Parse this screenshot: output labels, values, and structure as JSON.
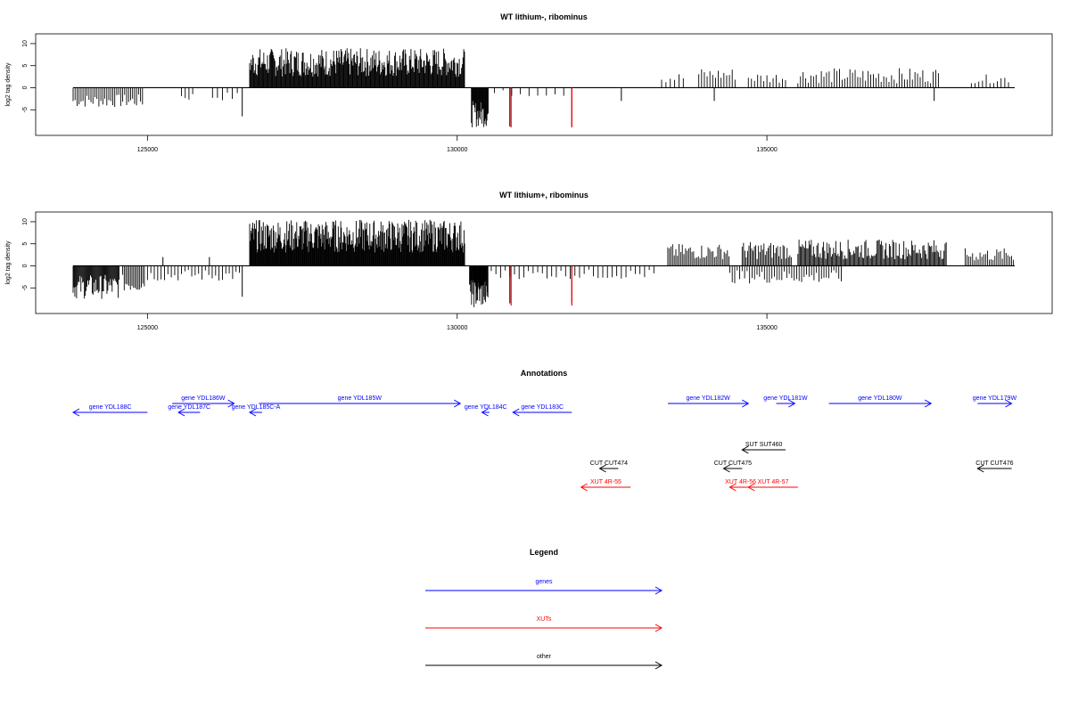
{
  "colors": {
    "gene": "#0000ff",
    "xut": "#ff0000",
    "other": "#000000",
    "trace": "#000000",
    "highlight": "#ff0000"
  },
  "chart_data": [
    {
      "type": "bar",
      "title": "WT lithium-, ribominus",
      "ylabel": "log2 tag density",
      "xlim": [
        123400,
        139000
      ],
      "ylim": [
        -10,
        11
      ],
      "xticks": [
        125000,
        130000,
        135000
      ],
      "xtick_labels": [
        "125000",
        "130000",
        "135000"
      ],
      "yticks": [
        10,
        5,
        0,
        -5
      ],
      "ytick_labels": [
        "10",
        "5",
        "0",
        "-5"
      ],
      "grid": false,
      "segments": [
        {
          "x0": 123800,
          "x1": 124950,
          "ymin": -4.5,
          "ymax": -1.5,
          "sign": -1,
          "step": 32
        },
        {
          "x0": 125550,
          "x1": 125750,
          "ymin": -3,
          "ymax": -1,
          "sign": -1,
          "step": 60
        },
        {
          "x0": 126050,
          "x1": 126500,
          "ymin": -3,
          "ymax": -1,
          "sign": -1,
          "step": 80
        },
        {
          "x0": 126650,
          "x1": 130120,
          "ymin": 2.5,
          "ymax": 9,
          "sign": 1,
          "step": 12
        },
        {
          "x0": 130230,
          "x1": 130500,
          "ymin": -9,
          "ymax": -3,
          "sign": -1,
          "step": 10
        },
        {
          "x0": 130600,
          "x1": 131800,
          "ymin": -2,
          "ymax": -0.5,
          "sign": -1,
          "step": 140
        },
        {
          "x0": 133300,
          "x1": 133700,
          "ymin": 1,
          "ymax": 3.5,
          "sign": 1,
          "step": 70
        },
        {
          "x0": 133900,
          "x1": 134500,
          "ymin": 1.5,
          "ymax": 4.5,
          "sign": 1,
          "step": 45
        },
        {
          "x0": 134700,
          "x1": 135300,
          "ymin": 1,
          "ymax": 3.5,
          "sign": 1,
          "step": 50
        },
        {
          "x0": 135500,
          "x1": 137800,
          "ymin": 1,
          "ymax": 4.5,
          "sign": 1,
          "step": 42
        },
        {
          "x0": 138300,
          "x1": 138950,
          "ymin": 1,
          "ymax": 3,
          "sign": 1,
          "step": 60
        }
      ],
      "spikes": [
        {
          "x": 126530,
          "y": -6.5
        },
        {
          "x": 130850,
          "y": -8.8
        },
        {
          "x": 131850,
          "y": -8.8
        },
        {
          "x": 132650,
          "y": -3
        },
        {
          "x": 134150,
          "y": -3
        },
        {
          "x": 137700,
          "y": -3
        }
      ],
      "red_spikes": [
        {
          "x": 130870,
          "y": -9
        },
        {
          "x": 131850,
          "y": -9
        }
      ]
    },
    {
      "type": "bar",
      "title": "WT lithium+, ribominus",
      "ylabel": "log2 tag density",
      "xlim": [
        123400,
        139000
      ],
      "ylim": [
        -10,
        11
      ],
      "xticks": [
        125000,
        130000,
        135000
      ],
      "xtick_labels": [
        "125000",
        "130000",
        "135000"
      ],
      "yticks": [
        10,
        5,
        0,
        -5
      ],
      "ytick_labels": [
        "10",
        "5",
        "0",
        "-5"
      ],
      "grid": false,
      "segments": [
        {
          "x0": 123800,
          "x1": 124550,
          "ymin": -7.5,
          "ymax": -2,
          "sign": -1,
          "step": 14
        },
        {
          "x0": 124600,
          "x1": 124950,
          "ymin": -6,
          "ymax": -2,
          "sign": -1,
          "step": 25
        },
        {
          "x0": 125000,
          "x1": 126500,
          "ymin": -3.5,
          "ymax": -0.8,
          "sign": -1,
          "step": 55
        },
        {
          "x0": 126650,
          "x1": 130120,
          "ymin": 3,
          "ymax": 10.5,
          "sign": 1,
          "step": 10
        },
        {
          "x0": 130200,
          "x1": 130500,
          "ymin": -9.5,
          "ymax": -3,
          "sign": -1,
          "step": 8
        },
        {
          "x0": 130550,
          "x1": 133200,
          "ymin": -3,
          "ymax": -0.8,
          "sign": -1,
          "step": 75
        },
        {
          "x0": 133400,
          "x1": 134400,
          "ymin": 1.5,
          "ymax": 5,
          "sign": 1,
          "step": 26
        },
        {
          "x0": 134600,
          "x1": 135400,
          "ymin": 1.5,
          "ymax": 5.5,
          "sign": 1,
          "step": 22
        },
        {
          "x0": 135500,
          "x1": 137900,
          "ymin": 1.5,
          "ymax": 6,
          "sign": 1,
          "step": 18
        },
        {
          "x0": 134400,
          "x1": 136200,
          "ymin": -4,
          "ymax": -1,
          "sign": -1,
          "step": 40
        },
        {
          "x0": 138200,
          "x1": 139000,
          "ymin": 1,
          "ymax": 4,
          "sign": 1,
          "step": 30
        }
      ],
      "spikes": [
        {
          "x": 126530,
          "y": -7
        },
        {
          "x": 125250,
          "y": 2
        },
        {
          "x": 126000,
          "y": 2
        },
        {
          "x": 130850,
          "y": -8.5
        },
        {
          "x": 131850,
          "y": -8.5
        }
      ],
      "red_spikes": [
        {
          "x": 130870,
          "y": -9
        },
        {
          "x": 131850,
          "y": -9
        }
      ]
    }
  ],
  "annotations": {
    "title": "Annotations",
    "items": [
      {
        "label": "gene YDL188C",
        "kind": "gene",
        "x0": 125000,
        "x1": 123800,
        "row": 1
      },
      {
        "label": "gene YDL186W",
        "kind": "gene",
        "x0": 125400,
        "x1": 126400,
        "row": 0
      },
      {
        "label": "gene YDL187C",
        "kind": "gene",
        "x0": 125850,
        "x1": 125500,
        "row": 1
      },
      {
        "label": "gene YDL185C-A",
        "kind": "gene",
        "x0": 126850,
        "x1": 126650,
        "row": 1
      },
      {
        "label": "gene YDL185W",
        "kind": "gene",
        "x0": 126800,
        "x1": 130050,
        "row": 0
      },
      {
        "label": "gene YDL184C",
        "kind": "gene",
        "x0": 130520,
        "x1": 130400,
        "row": 1
      },
      {
        "label": "gene YDL183C",
        "kind": "gene",
        "x0": 131850,
        "x1": 130900,
        "row": 1
      },
      {
        "label": "gene YDL182W",
        "kind": "gene",
        "x0": 133400,
        "x1": 134700,
        "row": 0
      },
      {
        "label": "gene YDL181W",
        "kind": "gene",
        "x0": 135150,
        "x1": 135450,
        "row": 0
      },
      {
        "label": "gene YDL180W",
        "kind": "gene",
        "x0": 136000,
        "x1": 137650,
        "row": 0
      },
      {
        "label": "gene YDL179W",
        "kind": "gene",
        "x0": 138400,
        "x1": 138950,
        "row": 0
      },
      {
        "label": "SUT SUT460",
        "kind": "other",
        "x0": 135300,
        "x1": 134600,
        "row": 2
      },
      {
        "label": "CUT CUT474",
        "kind": "other",
        "x0": 132600,
        "x1": 132300,
        "row": 3
      },
      {
        "label": "CUT CUT475",
        "kind": "other",
        "x0": 134600,
        "x1": 134300,
        "row": 3
      },
      {
        "label": "CUT CUT476",
        "kind": "other",
        "x0": 138950,
        "x1": 138400,
        "row": 3
      },
      {
        "label": "XUT 4R-55",
        "kind": "xut",
        "x0": 132800,
        "x1": 132000,
        "row": 4
      },
      {
        "label": "XUT 4R-56",
        "kind": "xut",
        "x0": 134750,
        "x1": 134400,
        "row": 4
      },
      {
        "label": "XUT 4R-57",
        "kind": "xut",
        "x0": 135500,
        "x1": 134700,
        "row": 4
      }
    ]
  },
  "legend": {
    "title": "Legend",
    "items": [
      {
        "label": "genes",
        "kind": "gene"
      },
      {
        "label": "XUTs",
        "kind": "xut"
      },
      {
        "label": "other",
        "kind": "other"
      }
    ]
  }
}
